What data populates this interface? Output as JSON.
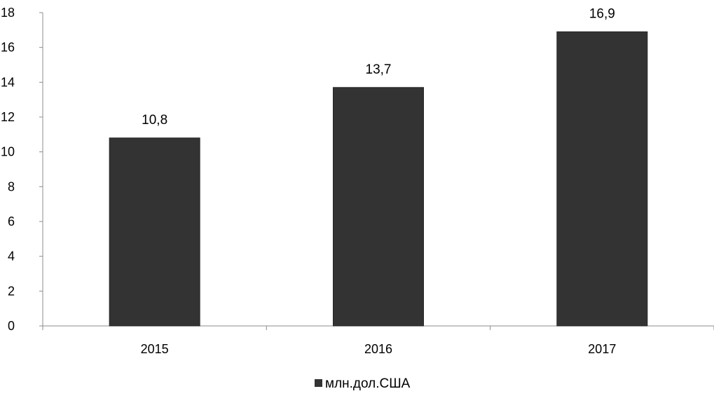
{
  "chart_data": {
    "type": "bar",
    "categories": [
      "2015",
      "2016",
      "2017"
    ],
    "series": [
      {
        "name": "млн.дол.США",
        "values": [
          10.8,
          13.7,
          16.9
        ],
        "value_labels": [
          "10,8",
          "13,7",
          "16,9"
        ]
      }
    ],
    "title": "",
    "xlabel": "",
    "ylabel": "",
    "ylim": [
      0,
      18
    ],
    "yticks": [
      0,
      2,
      4,
      6,
      8,
      10,
      12,
      14,
      16,
      18
    ],
    "grid": false,
    "legend_position": "bottom",
    "bar_color": "#333333"
  }
}
